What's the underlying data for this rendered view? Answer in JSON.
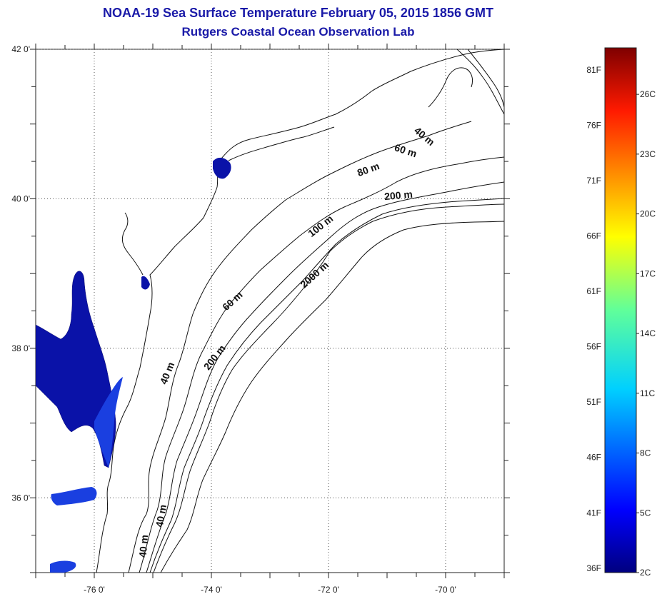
{
  "title": {
    "line1": "NOAA-19 Sea Surface Temperature February 05, 2015 1856 GMT",
    "line2": "Rutgers Coastal Ocean Observation Lab"
  },
  "map": {
    "lon_range": [
      -77,
      -69
    ],
    "lat_range": [
      35,
      42
    ],
    "lon_ticks": [
      {
        "value": -76,
        "label": "-76 0'"
      },
      {
        "value": -74,
        "label": "-74 0'"
      },
      {
        "value": -72,
        "label": "-72 0'"
      },
      {
        "value": -70,
        "label": "-70 0'"
      }
    ],
    "lat_ticks": [
      {
        "value": 42,
        "label": "42 0'"
      },
      {
        "value": 40,
        "label": "40 0'"
      },
      {
        "value": 38,
        "label": "38 0'"
      },
      {
        "value": 36,
        "label": "36 0'"
      }
    ],
    "grid": "dotted",
    "contour_labels": [
      {
        "text": "40 m",
        "lon": -70.4,
        "lat": 40.8,
        "angle": 40
      },
      {
        "text": "60 m",
        "lon": -70.7,
        "lat": 40.6,
        "angle": 18
      },
      {
        "text": "80 m",
        "lon": -71.3,
        "lat": 40.35,
        "angle": -20
      },
      {
        "text": "200 m",
        "lon": -70.8,
        "lat": 40.0,
        "angle": -5
      },
      {
        "text": "100 m",
        "lon": -72.1,
        "lat": 39.6,
        "angle": -38
      },
      {
        "text": "2000 m",
        "lon": -72.2,
        "lat": 38.95,
        "angle": -42
      },
      {
        "text": "60 m",
        "lon": -73.6,
        "lat": 38.6,
        "angle": -42
      },
      {
        "text": "200 m",
        "lon": -73.9,
        "lat": 37.85,
        "angle": -52
      },
      {
        "text": "40 m",
        "lon": -74.7,
        "lat": 37.65,
        "angle": -68
      },
      {
        "text": "40 m",
        "lon": -74.8,
        "lat": 35.75,
        "angle": -80
      },
      {
        "text": "40 m",
        "lon": -75.1,
        "lat": 35.35,
        "angle": -85
      }
    ]
  },
  "colorbar": {
    "f_labels": [
      {
        "value": 81,
        "label": "81F"
      },
      {
        "value": 76,
        "label": "76F"
      },
      {
        "value": 71,
        "label": "71F"
      },
      {
        "value": 66,
        "label": "66F"
      },
      {
        "value": 61,
        "label": "61F"
      },
      {
        "value": 56,
        "label": "56F"
      },
      {
        "value": 51,
        "label": "51F"
      },
      {
        "value": 46,
        "label": "46F"
      },
      {
        "value": 41,
        "label": "41F"
      },
      {
        "value": 36,
        "label": "36F"
      }
    ],
    "c_labels": [
      {
        "value": 26,
        "label": "26C"
      },
      {
        "value": 23,
        "label": "23C"
      },
      {
        "value": 20,
        "label": "20C"
      },
      {
        "value": 17,
        "label": "17C"
      },
      {
        "value": 14,
        "label": "14C"
      },
      {
        "value": 11,
        "label": "11C"
      },
      {
        "value": 8,
        "label": "8C"
      },
      {
        "value": 5,
        "label": "5C"
      },
      {
        "value": 2,
        "label": "2C"
      }
    ],
    "f_range": [
      35.6,
      83.0
    ],
    "colormap": "jet"
  },
  "colors": {
    "title": "#1a1aa8",
    "water_dark": "#0a12a8",
    "water_mid": "#1a3fe0",
    "contour": "#111111"
  }
}
